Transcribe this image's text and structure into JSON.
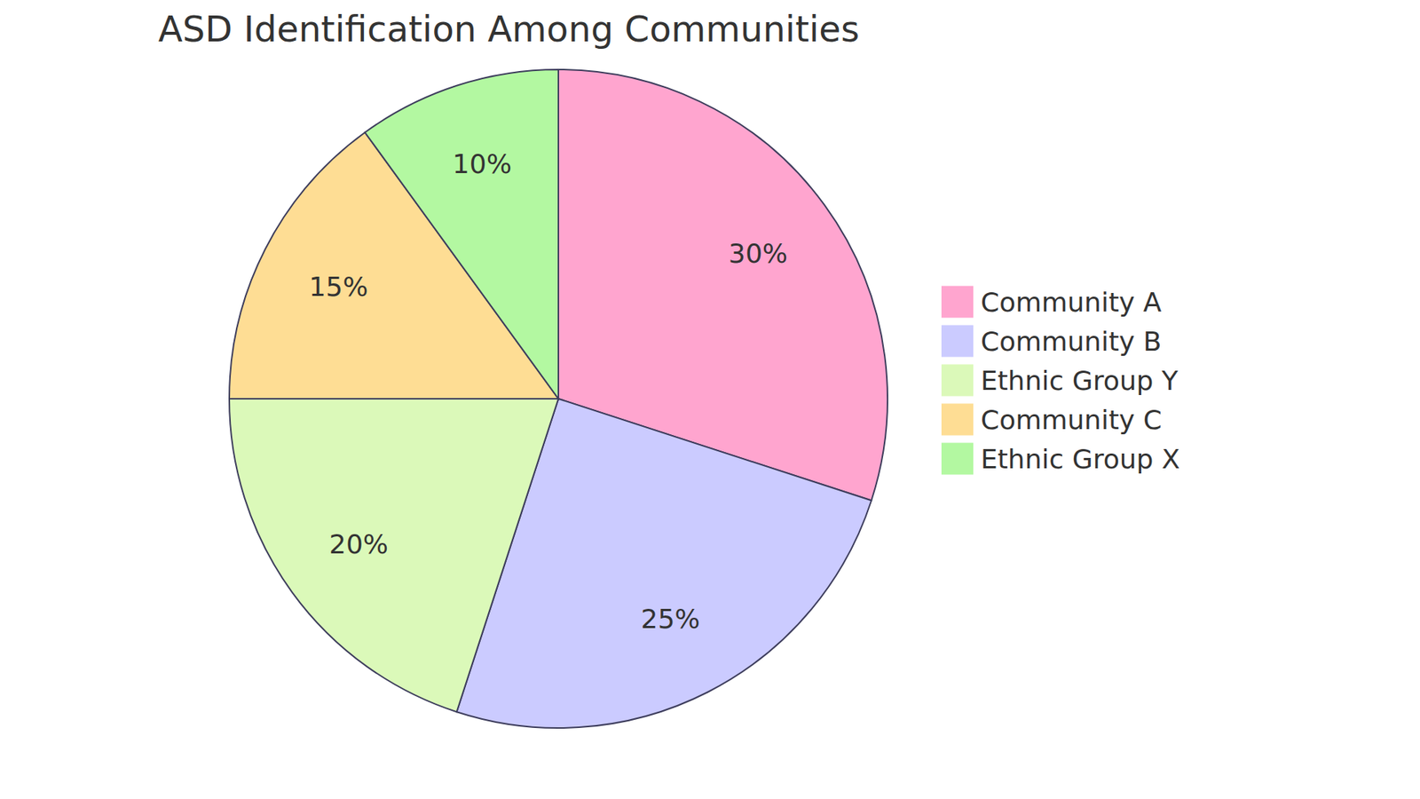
{
  "chart_data": {
    "type": "pie",
    "title": "ASD Identification Among Communities",
    "categories": [
      "Community A",
      "Community B",
      "Ethnic Group Y",
      "Community C",
      "Ethnic Group X"
    ],
    "values": [
      30,
      25,
      20,
      15,
      10
    ],
    "value_labels": [
      "30%",
      "25%",
      "20%",
      "15%",
      "10%"
    ],
    "colors": [
      "#FFA5CF",
      "#CBCBFF",
      "#DBF9B9",
      "#FEDD94",
      "#B3F8A1"
    ],
    "data_labels": true,
    "legend": "right"
  }
}
